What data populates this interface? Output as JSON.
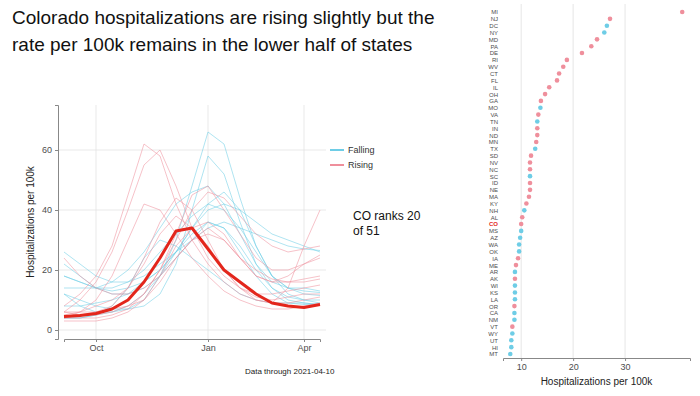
{
  "chart_data": [
    {
      "type": "line",
      "title": "Colorado hospitalizations are rising slightly but the rate per 100k remains in the lower half of states",
      "categories": [
        null,
        null,
        "Oct",
        null,
        null,
        null,
        null,
        null,
        null,
        "Jan",
        null,
        null,
        null,
        null,
        null,
        "Apr",
        null
      ],
      "series": [
        {
          "name": "Falling",
          "color": "#6ecde6",
          "values": [
            12,
            8,
            6,
            6,
            7,
            10,
            18,
            30,
            48,
            66,
            62,
            44,
            28,
            18,
            12,
            10,
            9
          ]
        },
        {
          "name": "Falling",
          "color": "#6ecde6",
          "values": [
            12,
            10,
            8,
            7,
            7,
            8,
            12,
            22,
            40,
            58,
            52,
            36,
            22,
            14,
            10,
            9,
            8.5
          ]
        },
        {
          "name": "Falling",
          "color": "#6ecde6",
          "values": [
            18,
            16,
            14,
            14,
            16,
            20,
            26,
            32,
            38,
            42,
            40,
            34,
            26,
            18,
            14,
            13,
            12.5
          ]
        },
        {
          "name": "Falling",
          "color": "#6ecde6",
          "values": [
            14,
            14,
            14,
            16,
            20,
            26,
            34,
            42,
            46,
            48,
            42,
            32,
            22,
            16,
            14,
            14,
            13
          ]
        },
        {
          "name": "Falling",
          "color": "#6ecde6",
          "values": [
            18,
            16,
            14,
            13,
            14,
            16,
            20,
            26,
            34,
            42,
            46,
            40,
            28,
            18,
            14,
            12,
            11.5
          ]
        },
        {
          "name": "Falling",
          "color": "#6ecde6",
          "values": [
            4,
            4,
            5,
            6,
            8,
            12,
            18,
            26,
            34,
            40,
            42,
            40,
            36,
            32,
            30,
            28,
            26
          ]
        },
        {
          "name": "Falling",
          "color": "#6ecde6",
          "values": [
            8,
            8,
            9,
            10,
            12,
            16,
            20,
            26,
            30,
            34,
            36,
            34,
            32,
            30,
            28,
            27,
            26.5
          ]
        },
        {
          "name": "Falling",
          "color": "#6ecde6",
          "values": [
            22,
            18,
            14,
            12,
            12,
            14,
            18,
            24,
            30,
            36,
            34,
            26,
            18,
            12,
            9,
            8.5,
            8.5
          ]
        },
        {
          "name": "Falling",
          "color": "#6ecde6",
          "values": [
            26,
            22,
            18,
            16,
            16,
            18,
            22,
            26,
            32,
            36,
            34,
            28,
            20,
            14,
            11,
            10,
            10
          ]
        },
        {
          "name": "Falling",
          "color": "#6ecde6",
          "values": [
            4,
            4,
            5,
            8,
            14,
            24,
            30,
            28,
            24,
            20,
            16,
            12,
            10,
            9,
            9,
            9,
            8.5
          ]
        },
        {
          "name": "Rising",
          "color": "#ef8f9c",
          "values": [
            8,
            12,
            18,
            28,
            45,
            62,
            58,
            42,
            30,
            22,
            16,
            12,
            10,
            9,
            9,
            10,
            11
          ]
        },
        {
          "name": "Rising",
          "color": "#ef8f9c",
          "values": [
            6,
            10,
            16,
            26,
            40,
            55,
            60,
            48,
            34,
            24,
            18,
            14,
            11,
            10,
            11,
            12,
            12
          ]
        },
        {
          "name": "Rising",
          "color": "#ef8f9c",
          "values": [
            4,
            6,
            10,
            18,
            30,
            42,
            40,
            32,
            24,
            18,
            13,
            10,
            8,
            7,
            7,
            8,
            9
          ]
        },
        {
          "name": "Rising",
          "color": "#ef8f9c",
          "values": [
            5,
            6,
            8,
            10,
            14,
            22,
            32,
            38,
            34,
            28,
            20,
            14,
            10,
            9,
            14,
            28,
            40
          ]
        },
        {
          "name": "Rising",
          "color": "#ef8f9c",
          "values": [
            6,
            5,
            5,
            6,
            8,
            12,
            20,
            30,
            40,
            46,
            44,
            38,
            32,
            28,
            26,
            27,
            28
          ]
        },
        {
          "name": "Rising",
          "color": "#ef8f9c",
          "values": [
            4,
            4,
            4,
            5,
            7,
            12,
            20,
            32,
            45,
            48,
            40,
            32,
            24,
            20,
            20,
            22,
            24
          ]
        },
        {
          "name": "Rising",
          "color": "#ef8f9c",
          "values": [
            6,
            6,
            6,
            7,
            8,
            10,
            16,
            24,
            30,
            32,
            30,
            24,
            18,
            16,
            18,
            22,
            25
          ]
        },
        {
          "name": "Rising",
          "color": "#ef8f9c",
          "values": [
            3,
            3,
            3,
            4,
            6,
            10,
            18,
            28,
            34,
            36,
            32,
            24,
            18,
            16,
            16,
            17,
            18
          ]
        },
        {
          "name": "Rising",
          "color": "#ef8f9c",
          "values": [
            4,
            5,
            6,
            8,
            14,
            24,
            36,
            44,
            40,
            30,
            20,
            14,
            12,
            12,
            13,
            14,
            15
          ]
        },
        {
          "name": "Rising",
          "color": "#ef8f9c",
          "values": [
            24,
            18,
            14,
            12,
            12,
            14,
            18,
            24,
            30,
            34,
            30,
            24,
            20,
            17,
            16,
            16,
            17
          ]
        },
        {
          "name": "CO",
          "color": "#e3261c",
          "values": [
            4.5,
            4.8,
            5.5,
            7,
            10,
            16,
            24,
            33,
            34,
            27,
            20,
            16,
            12,
            9,
            8,
            7.5,
            8.5
          ]
        }
      ],
      "ylim": [
        -3,
        75
      ],
      "yticks": [
        0,
        20,
        40,
        60
      ],
      "y_label": "Hospitalizations per 100k",
      "grid": true,
      "legend": "right",
      "caption": "Data through 2021-04-10",
      "annotation": "CO ranks 20 of 51"
    },
    {
      "type": "dot",
      "orientation": "horizontal",
      "categories": [
        "MI",
        "NJ",
        "DC",
        "NY",
        "MD",
        "PA",
        "DE",
        "RI",
        "WV",
        "CT",
        "FL",
        "IL",
        "OH",
        "GA",
        "MO",
        "VA",
        "TN",
        "IN",
        "ND",
        "MN",
        "TX",
        "SD",
        "NV",
        "NC",
        "SC",
        "ID",
        "NE",
        "MA",
        "KY",
        "NH",
        "AL",
        "CO",
        "MS",
        "AZ",
        "WA",
        "OK",
        "IA",
        "ME",
        "AR",
        "AK",
        "WI",
        "KS",
        "LA",
        "OR",
        "CA",
        "NM",
        "VT",
        "WY",
        "UT",
        "HI",
        "MT"
      ],
      "values": [
        41,
        27.1,
        26.5,
        26,
        24.6,
        23.5,
        21.7,
        18.8,
        18.1,
        17.3,
        16.9,
        15.4,
        14.6,
        13.8,
        13.7,
        13.3,
        13.1,
        13.1,
        13.1,
        12.9,
        12.7,
        11.9,
        11.7,
        11.7,
        11.7,
        11.7,
        11.7,
        11.5,
        11,
        10.6,
        10.2,
        10,
        10,
        9.8,
        9.6,
        9.6,
        9.4,
        9,
        8.8,
        8.8,
        8.8,
        8.8,
        8.8,
        8.7,
        8.7,
        8.7,
        8.3,
        8.3,
        8.1,
        8.1,
        7.9
      ],
      "colors": [
        "#ef8f9c",
        "#ef8f9c",
        "#6ecde6",
        "#6ecde6",
        "#ef8f9c",
        "#ef8f9c",
        "#ef8f9c",
        "#ef8f9c",
        "#ef8f9c",
        "#ef8f9c",
        "#ef8f9c",
        "#ef8f9c",
        "#ef8f9c",
        "#ef8f9c",
        "#6ecde6",
        "#ef8f9c",
        "#6ecde6",
        "#ef8f9c",
        "#ef8f9c",
        "#ef8f9c",
        "#6ecde6",
        "#ef8f9c",
        "#ef8f9c",
        "#ef8f9c",
        "#6ecde6",
        "#ef8f9c",
        "#ef8f9c",
        "#ef8f9c",
        "#ef8f9c",
        "#6ecde6",
        "#ef8f9c",
        "#ef8f9c",
        "#6ecde6",
        "#6ecde6",
        "#6ecde6",
        "#6ecde6",
        "#ef8f9c",
        "#ef8f9c",
        "#6ecde6",
        "#ef8f9c",
        "#6ecde6",
        "#6ecde6",
        "#6ecde6",
        "#ef8f9c",
        "#6ecde6",
        "#6ecde6",
        "#ef8f9c",
        "#6ecde6",
        "#6ecde6",
        "#6ecde6",
        "#6ecde6"
      ],
      "xlim": [
        6.5,
        42.5
      ],
      "xticks": [
        10,
        20,
        30
      ],
      "x_label": "Hospitalizations per 100k",
      "grid": true
    }
  ]
}
